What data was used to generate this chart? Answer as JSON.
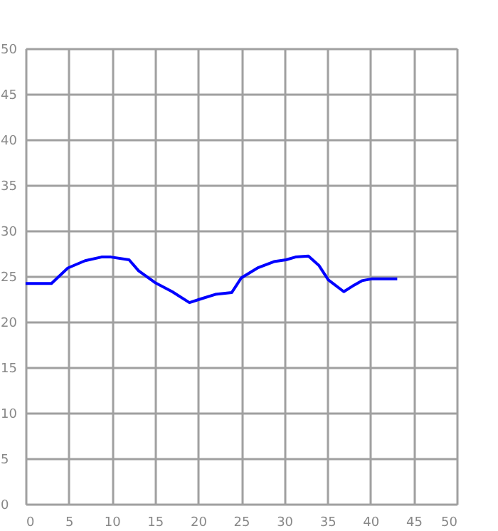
{
  "chart_data": {
    "type": "line",
    "x": [
      0,
      3,
      4.9,
      6.9,
      8.8,
      9.9,
      12,
      13.1,
      15,
      17,
      19,
      20.3,
      22,
      23.9,
      25,
      26.9,
      28.8,
      30.2,
      31.3,
      32.8,
      34,
      35.1,
      36.9,
      37.9,
      39,
      40.1,
      43.1
    ],
    "series": [
      {
        "color": "#0000ff",
        "values": [
          24.2,
          24.2,
          25.9,
          26.7,
          27.1,
          27.1,
          26.8,
          25.6,
          24.3,
          23.3,
          22.1,
          22.5,
          23.0,
          23.2,
          24.8,
          25.9,
          26.6,
          26.8,
          27.1,
          27.2,
          26.2,
          24.6,
          23.3,
          23.9,
          24.5,
          24.7,
          24.7
        ]
      }
    ],
    "xlim": [
      0,
      50
    ],
    "xticks": [
      0,
      5,
      10,
      15,
      20,
      25,
      30,
      35,
      40,
      45,
      50
    ],
    "ylim": [
      0,
      50
    ],
    "yticks": [
      0,
      5,
      10,
      15,
      20,
      25,
      30,
      35,
      40,
      45,
      50
    ],
    "grid": true,
    "marker": "none",
    "line_style": "solid"
  }
}
